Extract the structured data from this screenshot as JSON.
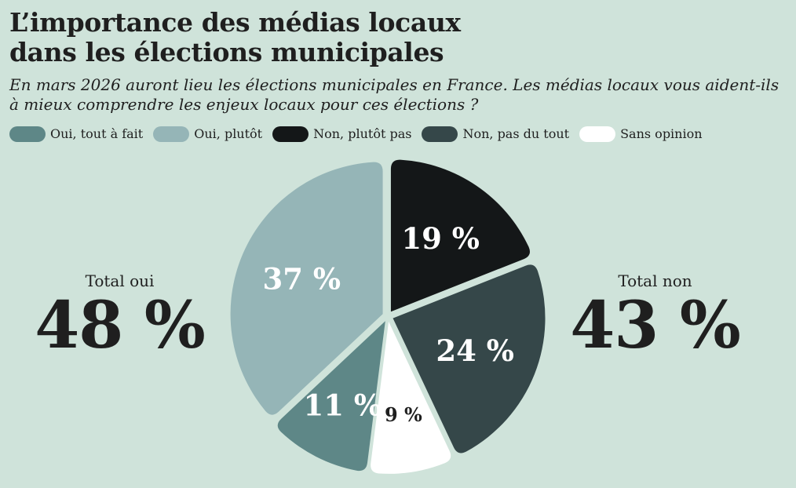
{
  "title": {
    "line1": "L’importance des médias locaux",
    "line2": "dans les élections municipales"
  },
  "subtitle": "En mars 2026 auront lieu les élections municipales en France. Les médias locaux vous aident-ils à mieux comprendre les enjeux locaux pour ces élections ?",
  "legend": [
    {
      "label": "Oui, tout à fait",
      "color": "#5e8787"
    },
    {
      "label": "Oui, plutôt",
      "color": "#95b5b7"
    },
    {
      "label": "Non, plutôt pas",
      "color": "#141718"
    },
    {
      "label": "Non, pas du tout",
      "color": "#354749"
    },
    {
      "label": "Sans opinion",
      "color": "#ffffff"
    }
  ],
  "totals": {
    "oui": {
      "label": "Total oui",
      "value": "48 %"
    },
    "non": {
      "label": "Total non",
      "value": "43 %"
    }
  },
  "chart_data": {
    "type": "pie",
    "title": "L’importance des médias locaux dans les élections municipales",
    "categories": [
      "Non, plutôt pas",
      "Non, pas du tout",
      "Sans opinion",
      "Oui, tout à fait",
      "Oui, plutôt"
    ],
    "values": [
      19,
      24,
      9,
      11,
      37
    ],
    "labels": [
      "19 %",
      "24 %",
      "9 %",
      "11 %",
      "37 %"
    ],
    "colors": [
      "#141718",
      "#354749",
      "#ffffff",
      "#5e8787",
      "#95b5b7"
    ],
    "label_colors": [
      "#ffffff",
      "#ffffff",
      "#1f1f1f",
      "#ffffff",
      "#ffffff"
    ],
    "unit": "%"
  }
}
